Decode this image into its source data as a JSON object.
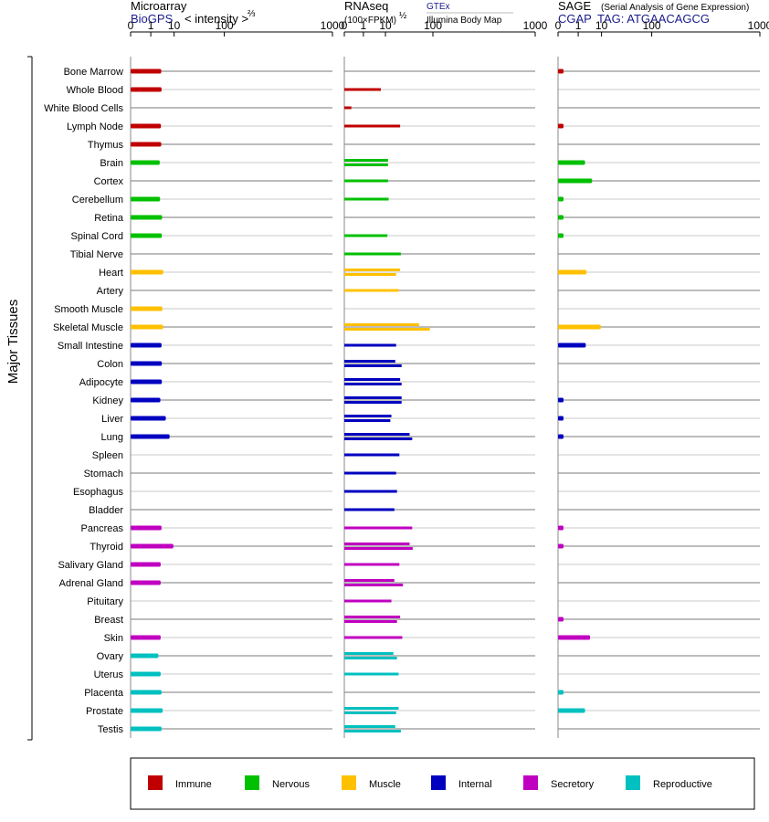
{
  "chart_data": {
    "type": "bar",
    "side_label": "Major Tissues",
    "tissues": [
      "Bone Marrow",
      "Whole Blood",
      "White Blood Cells",
      "Lymph Node",
      "Thymus",
      "Brain",
      "Cortex",
      "Cerebellum",
      "Retina",
      "Spinal Cord",
      "Tibial Nerve",
      "Heart",
      "Artery",
      "Smooth Muscle",
      "Skeletal Muscle",
      "Small Intestine",
      "Colon",
      "Adipocyte",
      "Kidney",
      "Liver",
      "Lung",
      "Spleen",
      "Stomach",
      "Esophagus",
      "Bladder",
      "Pancreas",
      "Thyroid",
      "Salivary Gland",
      "Adrenal Gland",
      "Pituitary",
      "Breast",
      "Skin",
      "Ovary",
      "Uterus",
      "Placenta",
      "Prostate",
      "Testis"
    ],
    "groups": [
      0,
      0,
      0,
      0,
      0,
      1,
      1,
      1,
      1,
      1,
      1,
      2,
      2,
      2,
      2,
      3,
      3,
      3,
      3,
      3,
      3,
      3,
      3,
      3,
      3,
      4,
      4,
      4,
      4,
      4,
      4,
      4,
      5,
      5,
      5,
      5,
      5
    ],
    "colors": [
      "#c00000",
      "#00c000",
      "#ffc000",
      "#0000c0",
      "#c000c0",
      "#00c0c0"
    ],
    "legend": [
      "Immune",
      "Nervous",
      "Muscle",
      "Internal",
      "Secretory",
      "Reproductive"
    ],
    "ticks": [
      "0",
      "1",
      "10",
      "100",
      "1000"
    ],
    "tick_values": [
      0,
      1,
      10,
      100,
      1000
    ],
    "panels": [
      {
        "title": "Microarray",
        "source": "BioGPS",
        "scale_label": "< intensity >",
        "scale_exp": "⅔",
        "xlim": [
          0,
          1000
        ],
        "values": [
          [
            3.5
          ],
          [
            3.6
          ],
          [
            0
          ],
          [
            3.4
          ],
          [
            3.5
          ],
          [
            3.0
          ],
          [
            0
          ],
          [
            3.1
          ],
          [
            3.8
          ],
          [
            3.7
          ],
          [
            0
          ],
          [
            4.2
          ],
          [
            0
          ],
          [
            3.9
          ],
          [
            4.2
          ],
          [
            3.6
          ],
          [
            3.7
          ],
          [
            3.7
          ],
          [
            3.2
          ],
          [
            5.3
          ],
          [
            7.2
          ],
          [
            0
          ],
          [
            0
          ],
          [
            0
          ],
          [
            0
          ],
          [
            3.6
          ],
          [
            9.5
          ],
          [
            3.3
          ],
          [
            3.3
          ],
          [
            0
          ],
          [
            0
          ],
          [
            3.3
          ],
          [
            2.6
          ],
          [
            3.3
          ],
          [
            3.6
          ],
          [
            4.0
          ],
          [
            3.6
          ]
        ]
      },
      {
        "title": "RNAseq",
        "scale_label": "(100×FPKM)",
        "scale_exp": "½",
        "legend_top": "GTEx",
        "legend_bottom": "Illumina Body Map",
        "xlim": [
          0,
          1000
        ],
        "values": [
          [
            0
          ],
          [
            7
          ],
          [
            0.05
          ],
          [
            25
          ],
          [
            0
          ],
          [
            12,
            12
          ],
          [
            12
          ],
          [
            12.5
          ],
          [
            0
          ],
          [
            11.5
          ],
          [
            26
          ],
          [
            25,
            20
          ],
          [
            23
          ],
          [
            0
          ],
          [
            60,
            90
          ],
          [
            20
          ],
          [
            19,
            27
          ],
          [
            25,
            27
          ],
          [
            27,
            27
          ],
          [
            15,
            14
          ],
          [
            40,
            45
          ],
          [
            24
          ],
          [
            20
          ],
          [
            21
          ],
          [
            18
          ],
          [
            45
          ],
          [
            40,
            46
          ],
          [
            24
          ],
          [
            18,
            29
          ],
          [
            15
          ],
          [
            25,
            21
          ],
          [
            28
          ],
          [
            17,
            21
          ],
          [
            23
          ],
          [
            0
          ],
          [
            23,
            20
          ],
          [
            19,
            26
          ]
        ]
      },
      {
        "title": "SAGE",
        "subtitle": "(Serial Analysis of Gene Expression)",
        "source": "CGAP",
        "tag": "TAG: ATGAACAGCG",
        "xlim": [
          0,
          1000
        ],
        "values": [
          [
            0.02
          ],
          [
            0
          ],
          [
            0
          ],
          [
            0.02
          ],
          [
            0
          ],
          [
            2.4
          ],
          [
            4.8
          ],
          [
            0.02
          ],
          [
            0.02
          ],
          [
            0.02
          ],
          [
            0
          ],
          [
            2.8
          ],
          [
            0
          ],
          [
            0
          ],
          [
            9.5
          ],
          [
            2.6
          ],
          [
            0
          ],
          [
            0
          ],
          [
            0.02
          ],
          [
            0.02
          ],
          [
            0.02
          ],
          [
            0
          ],
          [
            0
          ],
          [
            0
          ],
          [
            0
          ],
          [
            0.02
          ],
          [
            0.02
          ],
          [
            0
          ],
          [
            0
          ],
          [
            0
          ],
          [
            0.02
          ],
          [
            4.0
          ],
          [
            0
          ],
          [
            0
          ],
          [
            0.02
          ],
          [
            2.4
          ],
          [
            0
          ]
        ]
      }
    ]
  }
}
